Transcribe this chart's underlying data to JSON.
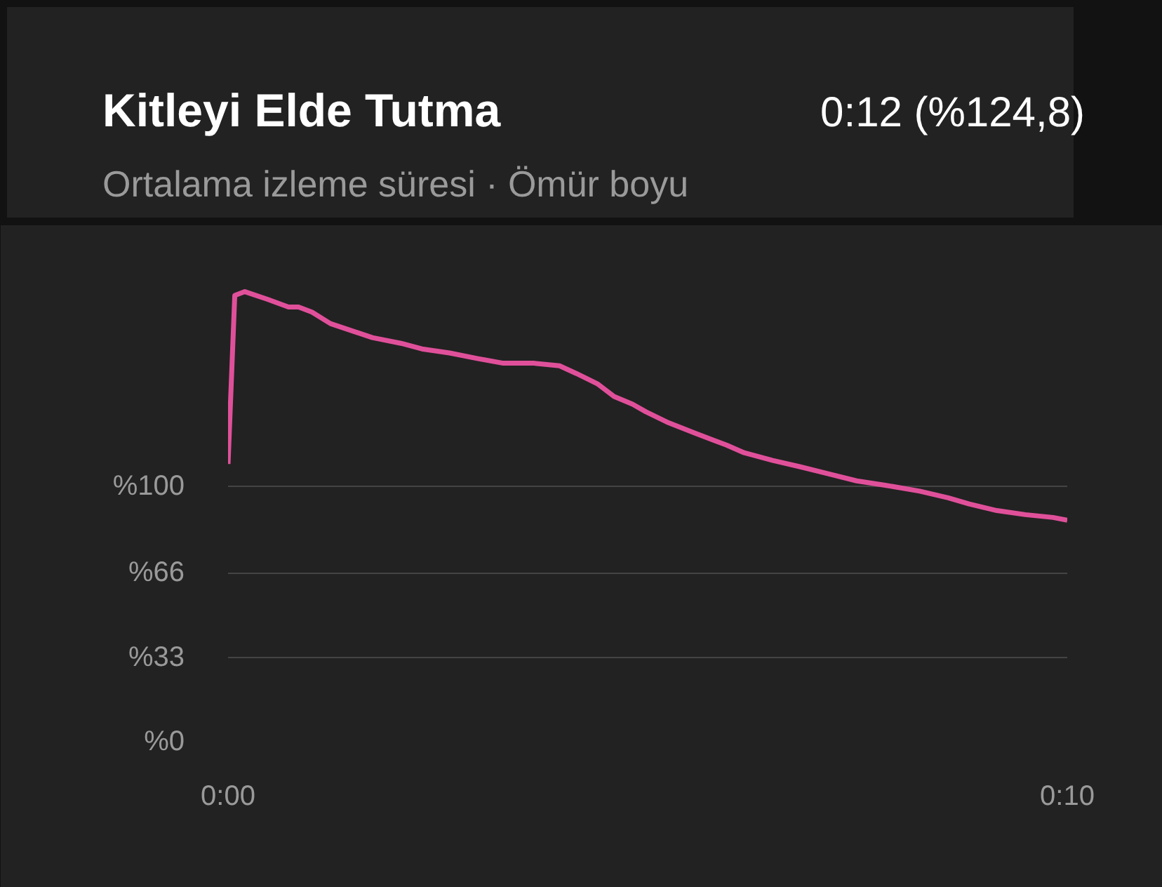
{
  "chart_data": {
    "type": "line",
    "title": "Kitleyi Elde Tutma",
    "subtitle": "Ortalama izleme süresi · Ömür boyu",
    "annotations": [
      "0:12 (%124,8)"
    ],
    "x": [
      0,
      0.08,
      0.2,
      0.47,
      0.72,
      0.84,
      1.0,
      1.22,
      1.72,
      2.06,
      2.31,
      2.64,
      2.98,
      3.28,
      3.65,
      3.95,
      4.15,
      4.4,
      4.6,
      4.82,
      4.98,
      5.23,
      5.57,
      5.94,
      6.15,
      6.49,
      6.82,
      7.16,
      7.49,
      7.83,
      8.24,
      8.58,
      8.83,
      9.16,
      9.5,
      9.83,
      10
    ],
    "series": [
      {
        "color": "#e0509a",
        "values": [
          108.6,
          174.5,
          176,
          173,
          170,
          170,
          168,
          163.5,
          158,
          155.8,
          153.6,
          152,
          149.8,
          148,
          148,
          147,
          144,
          140,
          135,
          132,
          129,
          125,
          120.6,
          116,
          113,
          110,
          107.5,
          104.7,
          102,
          100.3,
          98,
          95.4,
          93,
          90.4,
          88.8,
          87.7,
          86.6
        ]
      }
    ],
    "xlim": [
      0,
      10
    ],
    "xticks": [
      {
        "value": 0,
        "label": "0:00"
      },
      {
        "value": 10,
        "label": "0:10"
      }
    ],
    "ylim": [
      0,
      180
    ],
    "yticks": [
      {
        "value": 0,
        "label": "%0"
      },
      {
        "value": 33,
        "label": "%33"
      },
      {
        "value": 66,
        "label": "%66"
      },
      {
        "value": 100,
        "label": "%100"
      }
    ],
    "grid": "y",
    "marker": "none",
    "line_style": "solid"
  }
}
